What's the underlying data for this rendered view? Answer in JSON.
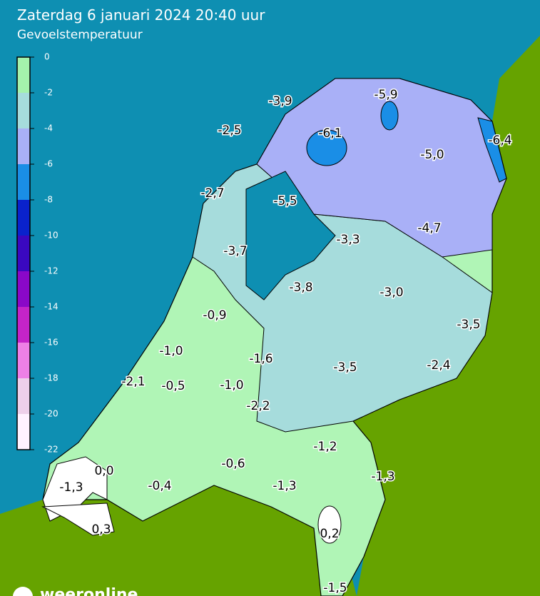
{
  "header": {
    "title": "Zaterdag 6 januari 2024 20:40 uur",
    "subtitle": "Gevoelstemperatuur"
  },
  "legend": {
    "ticks": [
      0,
      -2,
      -4,
      -6,
      -8,
      -10,
      -12,
      -14,
      -16,
      -18,
      -20,
      -22
    ],
    "colors": [
      "#a4f2ac",
      "#a6dcdc",
      "#a9b0f7",
      "#1a8ee6",
      "#0a22cc",
      "#3a08c0",
      "#8a08c8",
      "#c424c8",
      "#ee80e6",
      "#eed0ea",
      "#fff2ff"
    ]
  },
  "labels": [
    "-3,9",
    "-5,9",
    "-2,5",
    "-6,1",
    "-6,4",
    "-5,0",
    "-2,7",
    "-5,5",
    "-4,7",
    "-3,3",
    "-3,7",
    "-3,8",
    "-3,0",
    "-0,9",
    "-3,5",
    "-1,0",
    "-1,6",
    "-3,5",
    "-2,4",
    "-2,1",
    "-0,5",
    "-1,0",
    "-2,2",
    "-1,2",
    "-0,6",
    "-1,3",
    "0,0",
    "-1,3",
    "-0,4",
    "-1,3",
    "0,3",
    "0,2",
    "-1,5"
  ],
  "brand": "weeronline"
}
